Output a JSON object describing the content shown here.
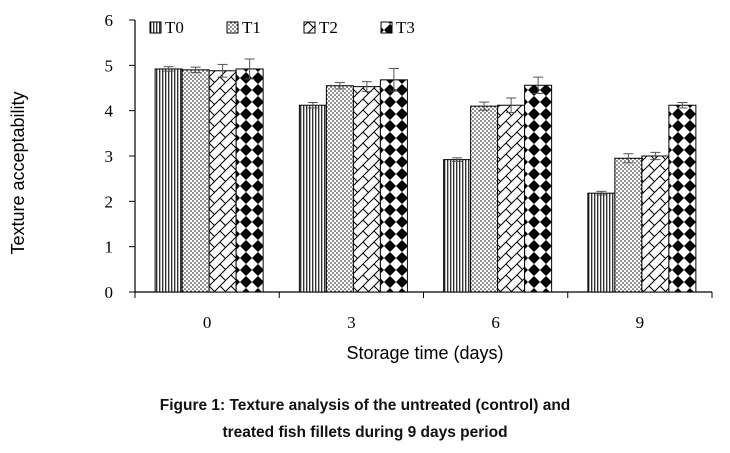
{
  "chart_data": {
    "type": "bar",
    "xlabel": "Storage time (days)",
    "ylabel": "Texture acceptability",
    "categories": [
      "0",
      "3",
      "6",
      "9"
    ],
    "ylim": [
      0,
      6
    ],
    "yticks": [
      "0",
      "1",
      "2",
      "3",
      "4",
      "5",
      "6"
    ],
    "legend_position": "top-left",
    "grid": false,
    "series": [
      {
        "name": "T0",
        "pattern": "vertical-lines",
        "values": [
          4.92,
          4.12,
          2.92,
          2.18
        ],
        "errors": [
          0.05,
          0.06,
          0.04,
          0.04
        ]
      },
      {
        "name": "T1",
        "pattern": "dots",
        "values": [
          4.9,
          4.55,
          4.1,
          2.95
        ],
        "errors": [
          0.06,
          0.07,
          0.09,
          0.1
        ]
      },
      {
        "name": "T2",
        "pattern": "diagonal-hatch",
        "values": [
          4.88,
          4.53,
          4.12,
          3.0
        ],
        "errors": [
          0.14,
          0.11,
          0.16,
          0.08
        ]
      },
      {
        "name": "T3",
        "pattern": "checker-diamonds",
        "values": [
          4.92,
          4.68,
          4.56,
          4.12
        ],
        "errors": [
          0.22,
          0.25,
          0.18,
          0.06
        ]
      }
    ]
  },
  "caption": {
    "line1": "Figure 1: Texture analysis of the untreated (control) and",
    "line2": "treated fish fillets during 9 days period"
  }
}
